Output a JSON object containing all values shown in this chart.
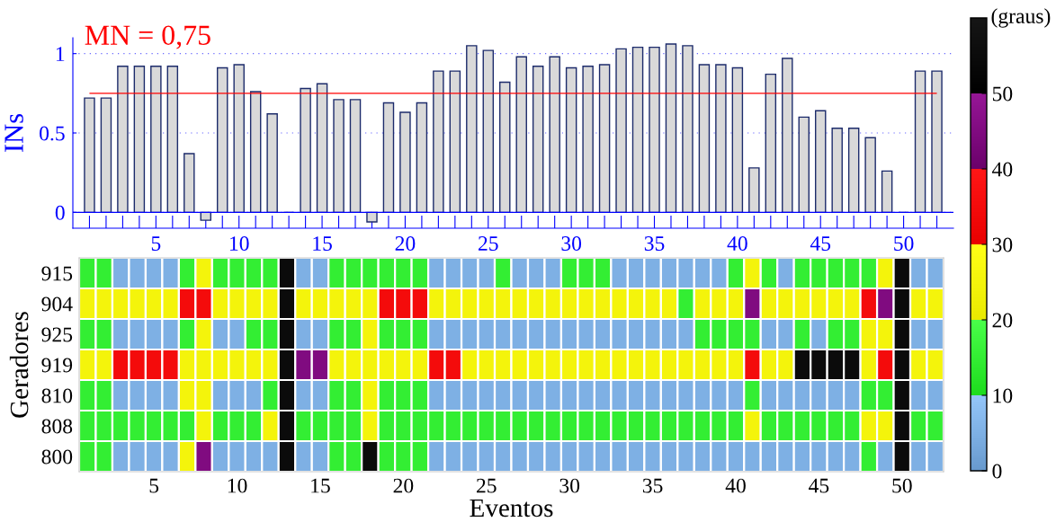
{
  "chart_data": [
    {
      "type": "bar",
      "ylabel": "INs",
      "x": [
        1,
        2,
        3,
        4,
        5,
        6,
        7,
        8,
        9,
        10,
        11,
        12,
        13,
        14,
        15,
        16,
        17,
        18,
        19,
        20,
        21,
        22,
        23,
        24,
        25,
        26,
        27,
        28,
        29,
        30,
        31,
        32,
        33,
        34,
        35,
        36,
        37,
        38,
        39,
        40,
        41,
        42,
        43,
        44,
        45,
        46,
        47,
        48,
        49,
        50,
        51,
        52
      ],
      "values": [
        0.72,
        0.72,
        0.92,
        0.92,
        0.92,
        0.92,
        0.37,
        -0.05,
        0.91,
        0.93,
        0.76,
        0.62,
        0,
        0.78,
        0.81,
        0.71,
        0.71,
        -0.06,
        0.69,
        0.63,
        0.69,
        0.89,
        0.89,
        1.05,
        1.02,
        0.82,
        0.98,
        0.92,
        0.98,
        0.91,
        0.92,
        0.93,
        1.03,
        1.04,
        1.04,
        1.06,
        1.05,
        0.93,
        0.93,
        0.91,
        0.28,
        0.87,
        0.97,
        0.6,
        0.64,
        0.53,
        0.53,
        0.47,
        0.26,
        0,
        0.89,
        0.89
      ],
      "colors": [
        "#d9d9d9",
        "#d9d9d9",
        "#d9d9d9",
        "#d9d9d9",
        "#d9d9d9",
        "#d9d9d9",
        "#d9d9d9",
        "#d9d9d9",
        "#d9d9d9",
        "#d9d9d9",
        "#d9d9d9",
        "#d9d9d9",
        "#1c2b6b",
        "#d9d9d9",
        "#d9d9d9",
        "#d9d9d9",
        "#d9d9d9",
        "#d9d9d9",
        "#d9d9d9",
        "#d9d9d9",
        "#d9d9d9",
        "#d9d9d9",
        "#d9d9d9",
        "#d9d9d9",
        "#d9d9d9",
        "#d9d9d9",
        "#d9d9d9",
        "#d9d9d9",
        "#d9d9d9",
        "#d9d9d9",
        "#d9d9d9",
        "#d9d9d9",
        "#d9d9d9",
        "#d9d9d9",
        "#d9d9d9",
        "#d9d9d9",
        "#d9d9d9",
        "#d9d9d9",
        "#d9d9d9",
        "#d9d9d9",
        "#d9d9d9",
        "#d9d9d9",
        "#d9d9d9",
        "#d9d9d9",
        "#d9d9d9",
        "#d9d9d9",
        "#d9d9d9",
        "#d9d9d9",
        "#d9d9d9",
        "#1c2b6b",
        "#d9d9d9",
        "#d9d9d9"
      ],
      "xlim": [
        0,
        53
      ],
      "ylim": [
        -0.1,
        1.1
      ],
      "yticks": [
        0,
        0.5,
        1
      ],
      "xticks": [
        {
          "value": 1,
          "label": null
        },
        {
          "value": 2,
          "label": null
        },
        {
          "value": 3,
          "label": null
        },
        {
          "value": 4,
          "label": null
        },
        5,
        {
          "value": 6,
          "label": null
        },
        {
          "value": 7,
          "label": null
        },
        {
          "value": 8,
          "label": null
        },
        {
          "value": 9,
          "label": null
        },
        10,
        {
          "value": 11,
          "label": null
        },
        {
          "value": 12,
          "label": null
        },
        {
          "value": 13,
          "label": null
        },
        {
          "value": 14,
          "label": null
        },
        15,
        {
          "value": 16,
          "label": null
        },
        {
          "value": 17,
          "label": null
        },
        {
          "value": 18,
          "label": null
        },
        {
          "value": 19,
          "label": null
        },
        20,
        {
          "value": 21,
          "label": null
        },
        {
          "value": 22,
          "label": null
        },
        {
          "value": 23,
          "label": null
        },
        {
          "value": 24,
          "label": null
        },
        25,
        {
          "value": 26,
          "label": null
        },
        {
          "value": 27,
          "label": null
        },
        {
          "value": 28,
          "label": null
        },
        {
          "value": 29,
          "label": null
        },
        30,
        {
          "value": 31,
          "label": null
        },
        {
          "value": 32,
          "label": null
        },
        {
          "value": 33,
          "label": null
        },
        {
          "value": 34,
          "label": null
        },
        35,
        {
          "value": 36,
          "label": null
        },
        {
          "value": 37,
          "label": null
        },
        {
          "value": 38,
          "label": null
        },
        {
          "value": 39,
          "label": null
        },
        40,
        {
          "value": 41,
          "label": null
        },
        {
          "value": 42,
          "label": null
        },
        {
          "value": 43,
          "label": null
        },
        {
          "value": 44,
          "label": null
        },
        45,
        {
          "value": 46,
          "label": null
        },
        {
          "value": 47,
          "label": null
        },
        {
          "value": 48,
          "label": null
        },
        {
          "value": 49,
          "label": null
        },
        50,
        {
          "value": 51,
          "label": null
        },
        {
          "value": 52,
          "label": null
        }
      ],
      "grid": "y",
      "ref_lines": [
        {
          "axis": "y",
          "value": 0,
          "color": "#0000ff"
        },
        {
          "axis": "y",
          "value": 0.75,
          "label": "MN = 0,75",
          "color": "#ff0000"
        }
      ]
    },
    {
      "type": "heatmap",
      "xlabel": "Eventos",
      "ylabel": "Geradores",
      "clabel": "(graus)",
      "categories": [
        null,
        null,
        null,
        null,
        "5",
        null,
        null,
        null,
        null,
        "10",
        null,
        null,
        null,
        null,
        "15",
        null,
        null,
        null,
        null,
        "20",
        null,
        null,
        null,
        null,
        "25",
        null,
        null,
        null,
        null,
        "30",
        null,
        null,
        null,
        null,
        "35",
        null,
        null,
        null,
        null,
        "40",
        null,
        null,
        null,
        null,
        "45",
        null,
        null,
        null,
        null,
        "50",
        null,
        null
      ],
      "y_categories": [
        "915",
        "904",
        "925",
        "919",
        "810",
        "808",
        "800"
      ],
      "cells": [
        [
          15,
          15,
          5,
          5,
          5,
          5,
          15,
          25,
          15,
          15,
          15,
          15,
          55,
          5,
          5,
          15,
          15,
          15,
          15,
          15,
          15,
          5,
          5,
          5,
          5,
          15,
          5,
          5,
          5,
          15,
          15,
          15,
          5,
          5,
          5,
          5,
          5,
          5,
          5,
          15,
          25,
          15,
          5,
          15,
          15,
          15,
          15,
          15,
          25,
          55,
          5,
          5
        ],
        [
          25,
          25,
          25,
          25,
          25,
          25,
          35,
          35,
          25,
          25,
          25,
          25,
          55,
          25,
          25,
          25,
          25,
          25,
          35,
          35,
          35,
          25,
          25,
          25,
          25,
          25,
          25,
          25,
          25,
          25,
          25,
          25,
          25,
          25,
          25,
          25,
          15,
          25,
          25,
          25,
          45,
          25,
          25,
          25,
          25,
          25,
          25,
          35,
          45,
          55,
          25,
          25
        ],
        [
          15,
          15,
          5,
          5,
          5,
          5,
          15,
          25,
          5,
          5,
          15,
          15,
          55,
          5,
          5,
          15,
          15,
          25,
          15,
          15,
          15,
          5,
          5,
          5,
          5,
          5,
          5,
          5,
          5,
          5,
          5,
          5,
          5,
          5,
          5,
          5,
          5,
          15,
          15,
          15,
          15,
          5,
          5,
          15,
          5,
          15,
          15,
          25,
          25,
          55,
          5,
          5
        ],
        [
          25,
          25,
          35,
          35,
          35,
          35,
          25,
          25,
          25,
          25,
          25,
          25,
          55,
          45,
          45,
          25,
          25,
          25,
          25,
          25,
          25,
          35,
          35,
          25,
          25,
          25,
          25,
          25,
          25,
          25,
          25,
          25,
          25,
          25,
          25,
          25,
          25,
          25,
          25,
          25,
          35,
          25,
          25,
          55,
          55,
          55,
          55,
          25,
          35,
          55,
          25,
          25
        ],
        [
          15,
          15,
          5,
          5,
          5,
          5,
          25,
          25,
          5,
          5,
          5,
          15,
          55,
          5,
          5,
          15,
          15,
          25,
          15,
          15,
          15,
          5,
          5,
          5,
          5,
          5,
          5,
          5,
          5,
          5,
          5,
          5,
          5,
          5,
          5,
          5,
          5,
          5,
          5,
          5,
          15,
          5,
          5,
          5,
          5,
          5,
          5,
          15,
          15,
          55,
          5,
          5
        ],
        [
          15,
          15,
          15,
          15,
          15,
          15,
          15,
          25,
          15,
          15,
          15,
          25,
          55,
          15,
          15,
          15,
          15,
          25,
          15,
          15,
          15,
          15,
          15,
          15,
          15,
          15,
          15,
          15,
          15,
          15,
          15,
          15,
          15,
          15,
          15,
          15,
          15,
          15,
          15,
          15,
          25,
          15,
          15,
          15,
          15,
          15,
          15,
          25,
          25,
          55,
          15,
          15
        ],
        [
          15,
          15,
          5,
          5,
          5,
          5,
          25,
          45,
          5,
          5,
          5,
          5,
          55,
          5,
          5,
          15,
          15,
          55,
          15,
          15,
          15,
          5,
          5,
          5,
          5,
          5,
          5,
          5,
          5,
          5,
          5,
          5,
          5,
          5,
          5,
          5,
          5,
          5,
          5,
          5,
          5,
          5,
          5,
          5,
          5,
          5,
          5,
          15,
          5,
          55,
          5,
          5
        ]
      ],
      "clim": [
        0,
        60
      ],
      "cticks": [
        0,
        10,
        20,
        30,
        40,
        50
      ],
      "colors": [
        "#7eb0e4",
        "#33f233",
        "#ffff00",
        "#ff0000",
        "#800080",
        "#000000"
      ]
    }
  ]
}
